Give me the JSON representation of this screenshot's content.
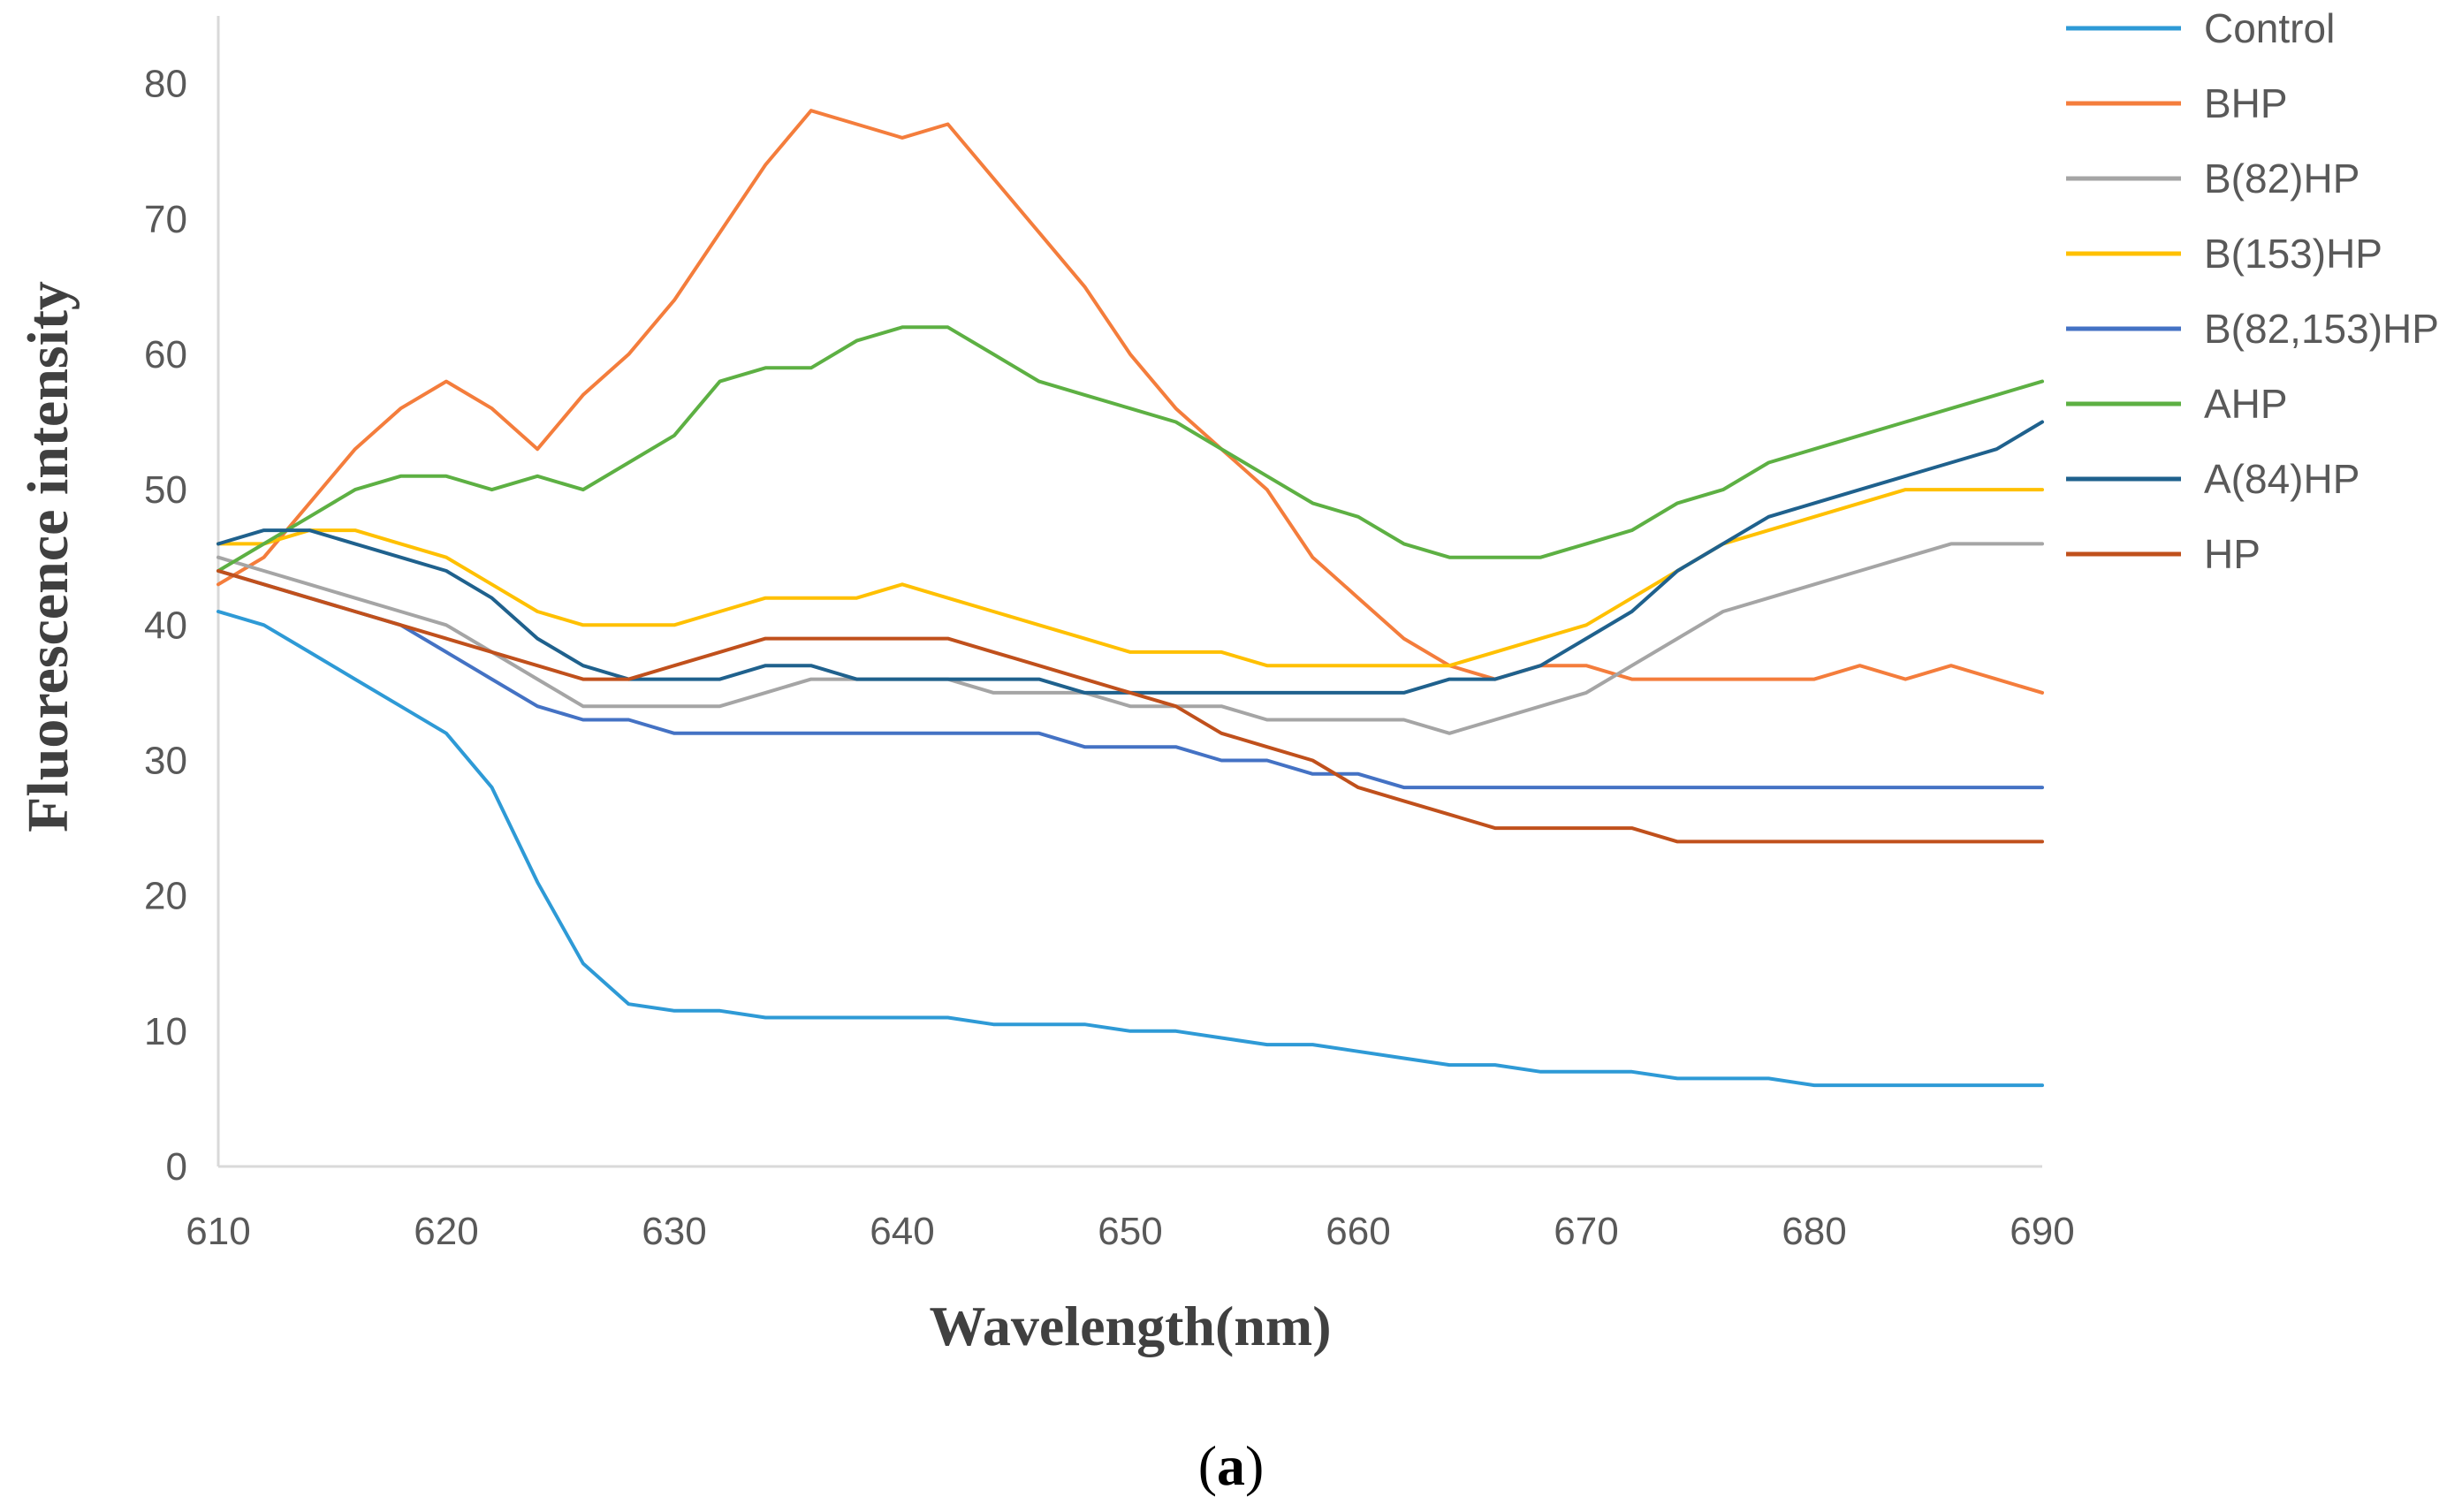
{
  "chart_data": {
    "type": "line",
    "title": "",
    "xlabel": "Wavelength(nm)",
    "ylabel": "Fluorescence intensity",
    "xlim": [
      610,
      690
    ],
    "ylim": [
      0,
      85
    ],
    "xticks": [
      610,
      620,
      630,
      640,
      650,
      660,
      670,
      680,
      690
    ],
    "yticks": [
      0,
      10,
      20,
      30,
      40,
      50,
      60,
      70,
      80
    ],
    "grid": false,
    "legend_position": "right",
    "caption": {
      "open": "(",
      "letter": "a",
      "close": ")"
    },
    "x": [
      610,
      612,
      614,
      616,
      618,
      620,
      622,
      624,
      626,
      628,
      630,
      632,
      634,
      636,
      638,
      640,
      642,
      644,
      646,
      648,
      650,
      652,
      654,
      656,
      658,
      660,
      662,
      664,
      666,
      668,
      670,
      672,
      674,
      676,
      678,
      680,
      682,
      684,
      686,
      688,
      690
    ],
    "series": [
      {
        "name": "Control",
        "color": "#2E9AD6",
        "values": [
          41,
          40,
          38,
          36,
          34,
          32,
          28,
          21,
          15,
          12,
          11.5,
          11.5,
          11,
          11,
          11,
          11,
          11,
          10.5,
          10.5,
          10.5,
          10,
          10,
          9.5,
          9,
          9,
          8.5,
          8,
          7.5,
          7.5,
          7,
          7,
          7,
          6.5,
          6.5,
          6.5,
          6,
          6,
          6,
          6,
          6,
          6
        ]
      },
      {
        "name": "BHP",
        "color": "#F47D3C",
        "values": [
          43,
          45,
          49,
          53,
          56,
          58,
          56,
          53,
          57,
          60,
          64,
          69,
          74,
          78,
          77,
          76,
          77,
          73,
          69,
          65,
          60,
          56,
          53,
          50,
          45,
          42,
          39,
          37,
          36,
          37,
          37,
          36,
          36,
          36,
          36,
          36,
          37,
          36,
          37,
          36,
          35
        ]
      },
      {
        "name": "B(82)HP",
        "color": "#A5A5A5",
        "values": [
          45,
          44,
          43,
          42,
          41,
          40,
          38,
          36,
          34,
          34,
          34,
          34,
          35,
          36,
          36,
          36,
          36,
          35,
          35,
          35,
          34,
          34,
          34,
          33,
          33,
          33,
          33,
          32,
          33,
          34,
          35,
          37,
          39,
          41,
          42,
          43,
          44,
          45,
          46,
          46,
          46
        ]
      },
      {
        "name": "B(153)HP",
        "color": "#FFC000",
        "values": [
          46,
          46,
          47,
          47,
          46,
          45,
          43,
          41,
          40,
          40,
          40,
          41,
          42,
          42,
          42,
          43,
          42,
          41,
          40,
          39,
          38,
          38,
          38,
          37,
          37,
          37,
          37,
          37,
          38,
          39,
          40,
          42,
          44,
          46,
          47,
          48,
          49,
          50,
          50,
          50,
          50
        ]
      },
      {
        "name": "B(82,153)HP",
        "color": "#4472C4",
        "values": [
          44,
          43,
          42,
          41,
          40,
          38,
          36,
          34,
          33,
          33,
          32,
          32,
          32,
          32,
          32,
          32,
          32,
          32,
          32,
          31,
          31,
          31,
          30,
          30,
          29,
          29,
          28,
          28,
          28,
          28,
          28,
          28,
          28,
          28,
          28,
          28,
          28,
          28,
          28,
          28,
          28
        ]
      },
      {
        "name": "AHP",
        "color": "#5DB043",
        "values": [
          44,
          46,
          48,
          50,
          51,
          51,
          50,
          51,
          50,
          52,
          54,
          58,
          59,
          59,
          61,
          62,
          62,
          60,
          58,
          57,
          56,
          55,
          53,
          51,
          49,
          48,
          46,
          45,
          45,
          45,
          46,
          47,
          49,
          50,
          52,
          53,
          54,
          55,
          56,
          57,
          58
        ]
      },
      {
        "name": "A(84)HP",
        "color": "#1F618D",
        "values": [
          46,
          47,
          47,
          46,
          45,
          44,
          42,
          39,
          37,
          36,
          36,
          36,
          37,
          37,
          36,
          36,
          36,
          36,
          36,
          35,
          35,
          35,
          35,
          35,
          35,
          35,
          35,
          36,
          36,
          37,
          39,
          41,
          44,
          46,
          48,
          49,
          50,
          51,
          52,
          53,
          55
        ]
      },
      {
        "name": "HP",
        "color": "#C0501C",
        "values": [
          44,
          43,
          42,
          41,
          40,
          39,
          38,
          37,
          36,
          36,
          37,
          38,
          39,
          39,
          39,
          39,
          39,
          38,
          37,
          36,
          35,
          34,
          32,
          31,
          30,
          28,
          27,
          26,
          25,
          25,
          25,
          25,
          24,
          24,
          24,
          24,
          24,
          24,
          24,
          24,
          24
        ]
      }
    ]
  }
}
